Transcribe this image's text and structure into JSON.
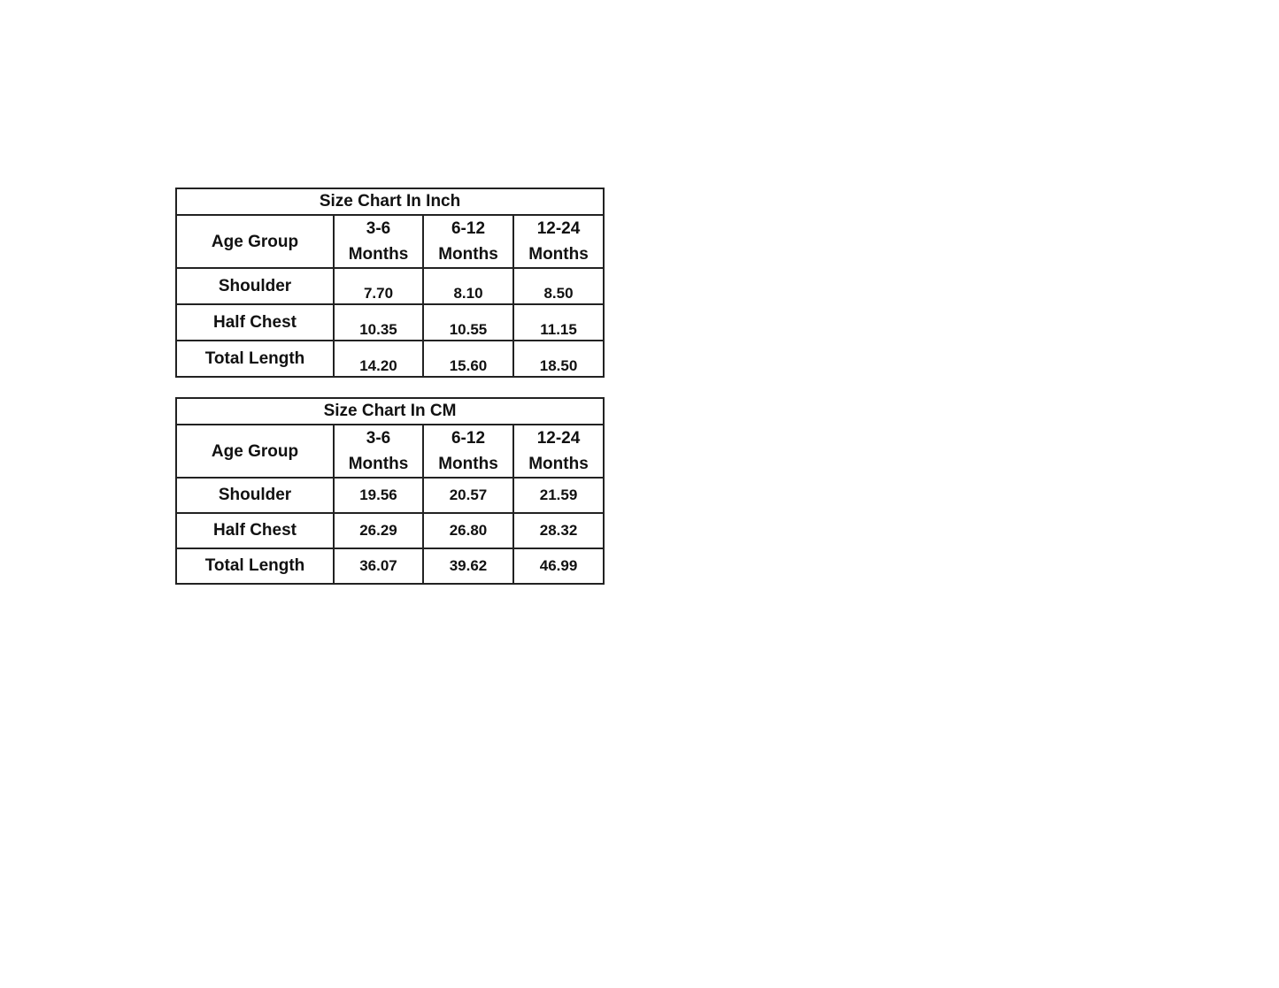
{
  "tables": [
    {
      "title": "Size Chart In Inch",
      "header_label": "Age Group",
      "columns": [
        "3-6 Months",
        "6-12 Months",
        "12-24 Months"
      ],
      "rows": [
        {
          "label": "Shoulder",
          "values": [
            "7.70",
            "8.10",
            "8.50"
          ]
        },
        {
          "label": "Half Chest",
          "values": [
            "10.35",
            "10.55",
            "11.15"
          ]
        },
        {
          "label": "Total Length",
          "values": [
            "14.20",
            "15.60",
            "18.50"
          ]
        }
      ]
    },
    {
      "title": "Size Chart In CM",
      "header_label": "Age Group",
      "columns": [
        "3-6 Months",
        "6-12 Months",
        "12-24 Months"
      ],
      "rows": [
        {
          "label": "Shoulder",
          "values": [
            "19.56",
            "20.57",
            "21.59"
          ]
        },
        {
          "label": "Half Chest",
          "values": [
            "26.29",
            "26.80",
            "28.32"
          ]
        },
        {
          "label": "Total Length",
          "values": [
            "36.07",
            "39.62",
            "46.99"
          ]
        }
      ]
    }
  ]
}
